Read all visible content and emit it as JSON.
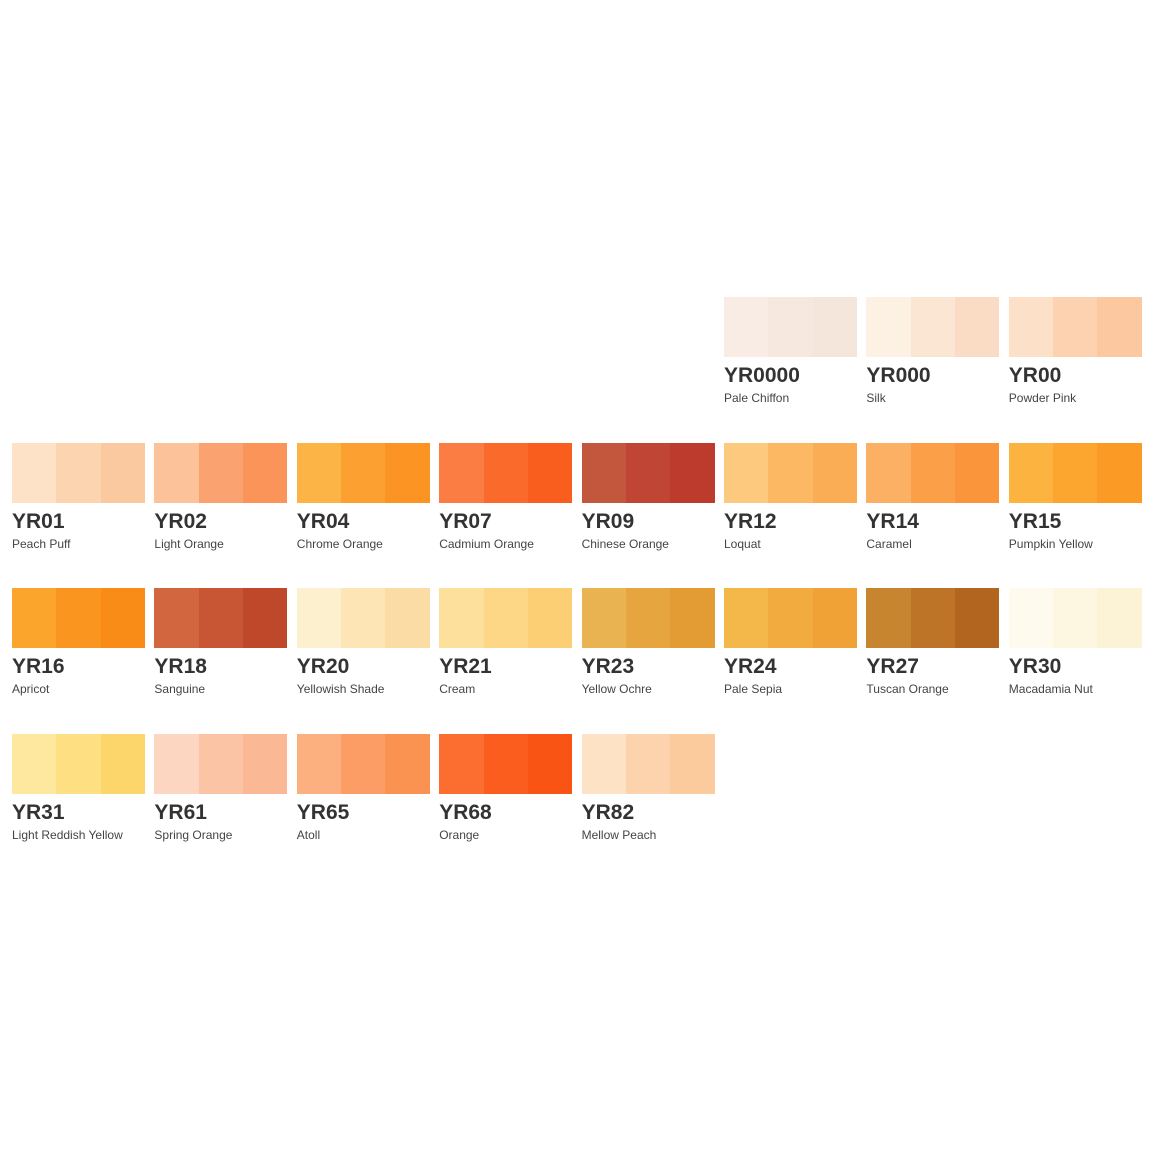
{
  "swatches": [
    {
      "code": "YR0000",
      "name": "Pale Chiffon",
      "colors": [
        "#f8ece4",
        "#f6e8df",
        "#f5e6dc"
      ]
    },
    {
      "code": "YR000",
      "name": "Silk",
      "colors": [
        "#fdf1e4",
        "#fbe6d3",
        "#f9dcc3"
      ]
    },
    {
      "code": "YR00",
      "name": "Powder Pink",
      "colors": [
        "#fde0c8",
        "#fcd2b0",
        "#fbc8a0"
      ]
    },
    {
      "code": "YR01",
      "name": "Peach Puff",
      "colors": [
        "#fde2c8",
        "#fcd4b0",
        "#fac9a0"
      ]
    },
    {
      "code": "YR02",
      "name": "Light Orange",
      "colors": [
        "#fcc29a",
        "#fba370",
        "#fa9458"
      ]
    },
    {
      "code": "YR04",
      "name": "Chrome Orange",
      "colors": [
        "#fdb447",
        "#fca131",
        "#fb9423"
      ]
    },
    {
      "code": "YR07",
      "name": "Cadmium Orange",
      "colors": [
        "#fb7d43",
        "#fa6a2b",
        "#f95e1e"
      ]
    },
    {
      "code": "YR09",
      "name": "Chinese Orange",
      "colors": [
        "#c2573d",
        "#c14535",
        "#bd3b2d"
      ]
    },
    {
      "code": "YR12",
      "name": "Loquat",
      "colors": [
        "#fdc97f",
        "#fcb863",
        "#fbad55"
      ]
    },
    {
      "code": "YR14",
      "name": "Caramel",
      "colors": [
        "#fcb064",
        "#fb9f49",
        "#fa953b"
      ]
    },
    {
      "code": "YR15",
      "name": "Pumpkin Yellow",
      "colors": [
        "#fdb33f",
        "#fca52f",
        "#fb9a25"
      ]
    },
    {
      "code": "YR16",
      "name": "Apricot",
      "colors": [
        "#fba52d",
        "#fa951f",
        "#f98c17"
      ]
    },
    {
      "code": "YR18",
      "name": "Sanguine",
      "colors": [
        "#d2673f",
        "#c85533",
        "#c0482a"
      ]
    },
    {
      "code": "YR20",
      "name": "Yellowish Shade",
      "colors": [
        "#fdf0cf",
        "#fde5b5",
        "#fcdca5"
      ]
    },
    {
      "code": "YR21",
      "name": "Cream",
      "colors": [
        "#fde09b",
        "#fdd785",
        "#fccf75"
      ]
    },
    {
      "code": "YR23",
      "name": "Yellow Ochre",
      "colors": [
        "#eab352",
        "#e6a53e",
        "#e29c33"
      ]
    },
    {
      "code": "YR24",
      "name": "Pale Sepia",
      "colors": [
        "#f4b74a",
        "#f2ab3e",
        "#f0a236"
      ]
    },
    {
      "code": "YR27",
      "name": "Tuscan Orange",
      "colors": [
        "#c7852f",
        "#be7427",
        "#b2651f"
      ]
    },
    {
      "code": "YR30",
      "name": "Macadamia Nut",
      "colors": [
        "#fefbee",
        "#fdf7e2",
        "#fcf3d6"
      ]
    },
    {
      "code": "YR31",
      "name": "Light Reddish Yellow",
      "colors": [
        "#fee8a0",
        "#fedf82",
        "#fdd66b"
      ]
    },
    {
      "code": "YR61",
      "name": "Spring Orange",
      "colors": [
        "#fcd6c0",
        "#fbc4a5",
        "#fab894"
      ]
    },
    {
      "code": "YR65",
      "name": "Atoll",
      "colors": [
        "#fcb07f",
        "#fb9d65",
        "#fa9252"
      ]
    },
    {
      "code": "YR68",
      "name": "Orange",
      "colors": [
        "#fb6e2f",
        "#fa5d1e",
        "#f95414"
      ]
    },
    {
      "code": "YR82",
      "name": "Mellow Peach",
      "colors": [
        "#fde2c6",
        "#fcd3ac",
        "#fbcb9e"
      ]
    }
  ]
}
